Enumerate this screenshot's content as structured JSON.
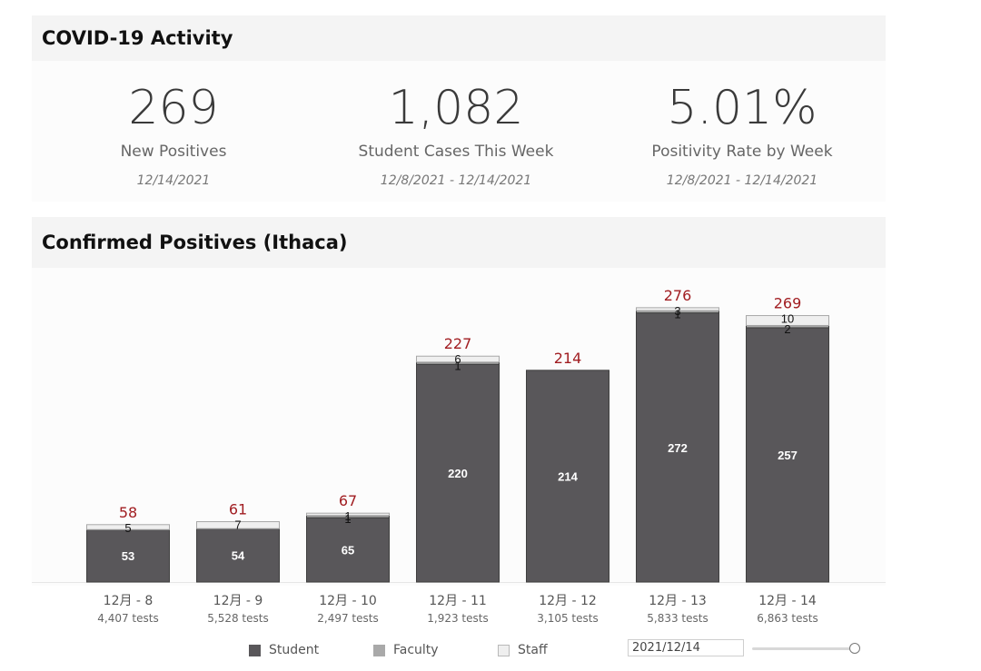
{
  "activity": {
    "title": "COVID-19 Activity",
    "kpis": [
      {
        "value": "269",
        "label": "New Positives",
        "date": "12/14/2021"
      },
      {
        "value": "1,082",
        "label": "Student Cases This Week",
        "date": "12/8/2021 - 12/14/2021"
      },
      {
        "value": "5.01%",
        "label": "Positivity Rate by Week",
        "date": "12/8/2021 - 12/14/2021"
      }
    ]
  },
  "positives": {
    "title": "Confirmed Positives (Ithaca)"
  },
  "chart_data": {
    "type": "bar",
    "stacked": true,
    "title": "Confirmed Positives (Ithaca)",
    "categories": [
      "12月 - 8",
      "12月 - 9",
      "12月 - 10",
      "12月 - 11",
      "12月 - 12",
      "12月 - 13",
      "12月 - 14"
    ],
    "tests": [
      "4,407 tests",
      "5,528 tests",
      "2,497 tests",
      "1,923 tests",
      "3,105 tests",
      "5,833 tests",
      "6,863 tests"
    ],
    "series": [
      {
        "name": "Student",
        "color": "#59575a",
        "values": [
          53,
          54,
          65,
          220,
          214,
          272,
          257
        ],
        "labels": [
          "53",
          "54",
          "65",
          "220",
          "214",
          "272",
          "257"
        ]
      },
      {
        "name": "Faculty",
        "color": "#a9a9a9",
        "values": [
          0,
          0,
          1,
          1,
          0,
          1,
          2
        ],
        "labels": [
          "",
          "",
          "1",
          "1",
          "",
          "1",
          "2"
        ]
      },
      {
        "name": "Staff",
        "color": "#efefef",
        "values": [
          5,
          7,
          1,
          6,
          0,
          3,
          10
        ],
        "labels": [
          "5",
          "7",
          "1",
          "6",
          "",
          "3",
          "10"
        ]
      }
    ],
    "totals": [
      "58",
      "61",
      "67",
      "227",
      "214",
      "276",
      "269"
    ],
    "total_color": "#a11d21",
    "ylim": [
      0,
      290
    ]
  },
  "legend": {
    "items": [
      {
        "label": "Student",
        "color": "#59575a"
      },
      {
        "label": "Faculty",
        "color": "#a9a9a9"
      },
      {
        "label": "Staff",
        "color": "#efefef"
      }
    ]
  },
  "date_filter": {
    "value": "2021/12/14"
  }
}
